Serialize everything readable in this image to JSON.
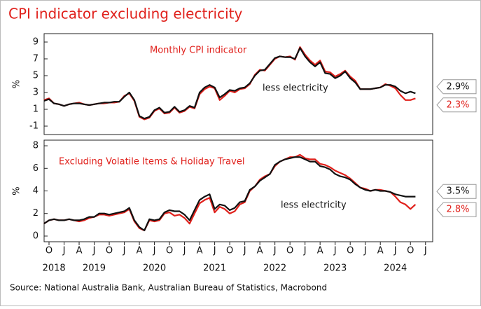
{
  "title": "CPI indicator excluding electricity",
  "source": "Source: National Australia Bank, Australian Bureau of Statistics, Macrobond",
  "chart_data": [
    {
      "type": "line",
      "ylabel": "%",
      "ylim": [
        -2,
        10
      ],
      "yticks": [
        -1,
        1,
        3,
        5,
        7,
        9
      ],
      "annotations": [
        {
          "text": "Monthly CPI indicator",
          "color": "#e0201b"
        },
        {
          "text": "less electricity",
          "color": "#111111"
        }
      ],
      "x": [
        "2018-09",
        "2018-10",
        "2018-11",
        "2018-12",
        "2019-01",
        "2019-02",
        "2019-03",
        "2019-04",
        "2019-05",
        "2019-06",
        "2019-07",
        "2019-08",
        "2019-09",
        "2019-10",
        "2019-11",
        "2019-12",
        "2020-01",
        "2020-02",
        "2020-03",
        "2020-04",
        "2020-05",
        "2020-06",
        "2020-07",
        "2020-08",
        "2020-09",
        "2020-10",
        "2020-11",
        "2020-12",
        "2021-01",
        "2021-02",
        "2021-03",
        "2021-04",
        "2021-05",
        "2021-06",
        "2021-07",
        "2021-08",
        "2021-09",
        "2021-10",
        "2021-11",
        "2021-12",
        "2022-01",
        "2022-02",
        "2022-03",
        "2022-04",
        "2022-05",
        "2022-06",
        "2022-07",
        "2022-08",
        "2022-09",
        "2022-10",
        "2022-11",
        "2022-12",
        "2023-01",
        "2023-02",
        "2023-03",
        "2023-04",
        "2023-05",
        "2023-06",
        "2023-07",
        "2023-08",
        "2023-09",
        "2023-10",
        "2023-11",
        "2023-12",
        "2024-01",
        "2024-02",
        "2024-03",
        "2024-04",
        "2024-05",
        "2024-06",
        "2024-07",
        "2024-08",
        "2024-09",
        "2024-10",
        "2024-11"
      ],
      "series": [
        {
          "name": "Monthly CPI indicator",
          "color": "#e0201b",
          "end_label": "2.3%",
          "values": [
            2.1,
            2.3,
            1.7,
            1.6,
            1.4,
            1.6,
            1.7,
            1.8,
            1.6,
            1.5,
            1.6,
            1.7,
            1.7,
            1.8,
            1.8,
            1.9,
            2.6,
            2.9,
            2.0,
            0.1,
            -0.2,
            0.0,
            0.8,
            1.1,
            0.5,
            0.6,
            1.2,
            0.6,
            0.8,
            1.3,
            1.1,
            2.8,
            3.4,
            3.7,
            3.5,
            2.1,
            2.6,
            3.2,
            3.0,
            3.4,
            3.5,
            4.0,
            5.1,
            5.7,
            5.6,
            6.3,
            7.0,
            7.3,
            7.2,
            7.3,
            6.9,
            8.4,
            7.5,
            6.8,
            6.3,
            6.8,
            5.5,
            5.4,
            4.9,
            5.2,
            5.6,
            4.9,
            4.4,
            3.4,
            3.4,
            3.4,
            3.5,
            3.6,
            4.0,
            3.8,
            3.5,
            2.7,
            2.1,
            2.1,
            2.3
          ]
        },
        {
          "name": "less electricity",
          "color": "#111111",
          "end_label": "2.9%",
          "values": [
            2.0,
            2.2,
            1.7,
            1.6,
            1.4,
            1.6,
            1.7,
            1.7,
            1.6,
            1.5,
            1.6,
            1.7,
            1.8,
            1.8,
            1.9,
            1.9,
            2.5,
            3.0,
            2.1,
            0.2,
            -0.1,
            0.1,
            0.9,
            1.2,
            0.6,
            0.7,
            1.3,
            0.7,
            0.9,
            1.4,
            1.2,
            3.0,
            3.6,
            3.9,
            3.6,
            2.4,
            2.8,
            3.3,
            3.2,
            3.5,
            3.6,
            4.1,
            5.0,
            5.6,
            5.7,
            6.4,
            7.1,
            7.3,
            7.2,
            7.2,
            7.0,
            8.3,
            7.3,
            6.6,
            6.1,
            6.6,
            5.3,
            5.2,
            4.7,
            5.0,
            5.5,
            4.7,
            4.2,
            3.4,
            3.4,
            3.4,
            3.5,
            3.6,
            3.9,
            3.9,
            3.7,
            3.2,
            2.9,
            3.1,
            2.9
          ]
        }
      ]
    },
    {
      "type": "line",
      "ylabel": "%",
      "ylim": [
        -0.5,
        8.5
      ],
      "yticks": [
        0,
        2,
        4,
        6,
        8
      ],
      "annotations": [
        {
          "text": "Excluding Volatile Items & Holiday Travel",
          "color": "#e0201b"
        },
        {
          "text": "less electricity",
          "color": "#111111"
        }
      ],
      "x": [
        "2018-09",
        "2018-10",
        "2018-11",
        "2018-12",
        "2019-01",
        "2019-02",
        "2019-03",
        "2019-04",
        "2019-05",
        "2019-06",
        "2019-07",
        "2019-08",
        "2019-09",
        "2019-10",
        "2019-11",
        "2019-12",
        "2020-01",
        "2020-02",
        "2020-03",
        "2020-04",
        "2020-05",
        "2020-06",
        "2020-07",
        "2020-08",
        "2020-09",
        "2020-10",
        "2020-11",
        "2020-12",
        "2021-01",
        "2021-02",
        "2021-03",
        "2021-04",
        "2021-05",
        "2021-06",
        "2021-07",
        "2021-08",
        "2021-09",
        "2021-10",
        "2021-11",
        "2021-12",
        "2022-01",
        "2022-02",
        "2022-03",
        "2022-04",
        "2022-05",
        "2022-06",
        "2022-07",
        "2022-08",
        "2022-09",
        "2022-10",
        "2022-11",
        "2022-12",
        "2023-01",
        "2023-02",
        "2023-03",
        "2023-04",
        "2023-05",
        "2023-06",
        "2023-07",
        "2023-08",
        "2023-09",
        "2023-10",
        "2023-11",
        "2023-12",
        "2024-01",
        "2024-02",
        "2024-03",
        "2024-04",
        "2024-05",
        "2024-06",
        "2024-07",
        "2024-08",
        "2024-09",
        "2024-10",
        "2024-11"
      ],
      "xticks": [
        {
          "value": "2018-10",
          "label": "O"
        },
        {
          "value": "2019-01",
          "label": "J"
        },
        {
          "value": "2019-04",
          "label": "A"
        },
        {
          "value": "2019-07",
          "label": "J"
        },
        {
          "value": "2019-10",
          "label": "O"
        },
        {
          "value": "2020-01",
          "label": "J"
        },
        {
          "value": "2020-04",
          "label": "A"
        },
        {
          "value": "2020-07",
          "label": "J"
        },
        {
          "value": "2020-10",
          "label": "O"
        },
        {
          "value": "2021-01",
          "label": "J"
        },
        {
          "value": "2021-04",
          "label": "A"
        },
        {
          "value": "2021-07",
          "label": "J"
        },
        {
          "value": "2021-10",
          "label": "O"
        },
        {
          "value": "2022-01",
          "label": "J"
        },
        {
          "value": "2022-04",
          "label": "A"
        },
        {
          "value": "2022-07",
          "label": "J"
        },
        {
          "value": "2022-10",
          "label": "O"
        },
        {
          "value": "2023-01",
          "label": "J"
        },
        {
          "value": "2023-04",
          "label": "A"
        },
        {
          "value": "2023-07",
          "label": "J"
        },
        {
          "value": "2023-10",
          "label": "O"
        },
        {
          "value": "2024-01",
          "label": "J"
        },
        {
          "value": "2024-04",
          "label": "A"
        },
        {
          "value": "2024-07",
          "label": "J"
        },
        {
          "value": "2024-10",
          "label": "O"
        },
        {
          "value": "2025-01",
          "label": "J"
        }
      ],
      "year_labels": [
        {
          "value": "2018-11",
          "label": "2018"
        },
        {
          "value": "2019-07",
          "label": "2019"
        },
        {
          "value": "2020-07",
          "label": "2020"
        },
        {
          "value": "2021-07",
          "label": "2021"
        },
        {
          "value": "2022-07",
          "label": "2022"
        },
        {
          "value": "2023-07",
          "label": "2023"
        },
        {
          "value": "2024-07",
          "label": "2024"
        }
      ],
      "series": [
        {
          "name": "Excluding Volatile Items & Holiday Travel",
          "color": "#e0201b",
          "end_label": "2.8%",
          "values": [
            1.1,
            1.4,
            1.5,
            1.4,
            1.4,
            1.5,
            1.4,
            1.3,
            1.4,
            1.6,
            1.7,
            1.9,
            1.9,
            1.8,
            1.9,
            2.0,
            2.1,
            2.4,
            1.3,
            0.7,
            0.5,
            1.4,
            1.3,
            1.4,
            2.0,
            2.1,
            1.8,
            1.9,
            1.6,
            1.1,
            2.0,
            2.9,
            3.2,
            3.4,
            2.1,
            2.6,
            2.4,
            2.0,
            2.2,
            2.8,
            3.0,
            4.0,
            4.4,
            5.0,
            5.3,
            5.5,
            6.2,
            6.6,
            6.8,
            7.0,
            7.0,
            7.2,
            6.9,
            6.8,
            6.8,
            6.4,
            6.3,
            6.1,
            5.8,
            5.6,
            5.4,
            5.1,
            4.7,
            4.3,
            4.2,
            4.0,
            4.1,
            4.1,
            4.0,
            3.9,
            3.5,
            3.0,
            2.8,
            2.4,
            2.8
          ]
        },
        {
          "name": "less electricity",
          "color": "#111111",
          "end_label": "3.5%",
          "values": [
            1.1,
            1.4,
            1.5,
            1.4,
            1.4,
            1.5,
            1.4,
            1.4,
            1.5,
            1.7,
            1.7,
            2.0,
            2.0,
            1.9,
            2.0,
            2.1,
            2.2,
            2.5,
            1.4,
            0.8,
            0.5,
            1.5,
            1.4,
            1.5,
            2.1,
            2.3,
            2.2,
            2.2,
            1.9,
            1.4,
            2.3,
            3.2,
            3.5,
            3.7,
            2.4,
            2.8,
            2.7,
            2.3,
            2.5,
            3.0,
            3.1,
            4.1,
            4.4,
            4.9,
            5.2,
            5.5,
            6.3,
            6.6,
            6.8,
            6.9,
            7.0,
            7.0,
            6.8,
            6.6,
            6.6,
            6.2,
            6.1,
            5.9,
            5.5,
            5.3,
            5.2,
            5.0,
            4.6,
            4.3,
            4.1,
            4.0,
            4.1,
            4.0,
            4.0,
            3.9,
            3.7,
            3.6,
            3.5,
            3.5,
            3.5
          ]
        }
      ]
    }
  ]
}
